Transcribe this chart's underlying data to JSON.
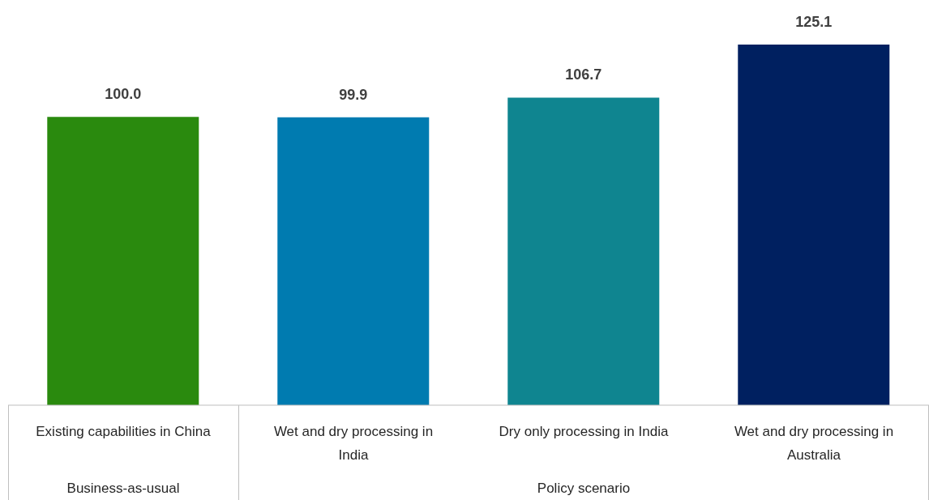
{
  "chart_data": {
    "type": "bar",
    "categories": [
      "Existing capabilities in China",
      "Wet and dry processing in India",
      "Dry only processing in India",
      "Wet and dry processing in Australia"
    ],
    "values": [
      100.0,
      99.9,
      106.7,
      125.1
    ],
    "colors": [
      "#2a8a0e",
      "#007bb0",
      "#0f8590",
      "#002060"
    ],
    "data_labels": true,
    "value_labels": [
      "100.0",
      "99.9",
      "106.7",
      "125.1"
    ],
    "annotations": [
      "Business-as-usual",
      "Policy scenario"
    ],
    "grid": false,
    "legend": false
  }
}
